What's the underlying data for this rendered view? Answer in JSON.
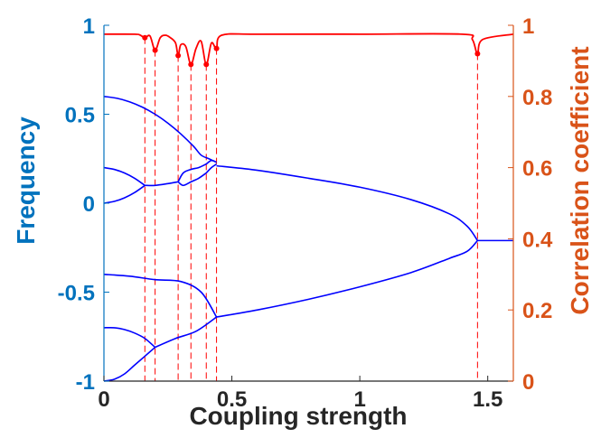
{
  "chart_data": {
    "type": "line",
    "xlabel": "Coupling strength",
    "ylabel_left": "Frequency",
    "ylabel_right": "Correlation coefficient",
    "xlim": [
      0,
      1.6
    ],
    "ylim_left": [
      -1,
      1
    ],
    "ylim_right": [
      0,
      1
    ],
    "x_ticks": [
      "0",
      "0.5",
      "1",
      "1.5"
    ],
    "y_ticks_left": [
      "-1",
      "-0.5",
      "0",
      "0.5",
      "1"
    ],
    "y_ticks_right": [
      "0",
      "0.2",
      "0.4",
      "0.6",
      "0.8",
      "1"
    ],
    "grid": false,
    "colors": {
      "left_axis": "#0072BD",
      "right_axis": "#D95319",
      "frequency_lines": "#0000FF",
      "correlation_line": "#FF0000"
    },
    "bifurcation_points": [
      0.16,
      0.2,
      0.29,
      0.34,
      0.4,
      0.44,
      1.46
    ],
    "frequency_branches": [
      {
        "x": [
          0,
          0.05,
          0.1,
          0.15,
          0.2,
          0.25,
          0.3,
          0.35,
          0.38,
          0.41,
          0.44
        ],
        "y": [
          0.6,
          0.59,
          0.57,
          0.54,
          0.5,
          0.45,
          0.39,
          0.32,
          0.27,
          0.25,
          0.23
        ]
      },
      {
        "x": [
          0,
          0.04,
          0.08,
          0.12,
          0.16
        ],
        "y": [
          0.2,
          0.19,
          0.17,
          0.14,
          0.1
        ]
      },
      {
        "x": [
          0,
          0.04,
          0.08,
          0.12,
          0.16
        ],
        "y": [
          0,
          0.01,
          0.03,
          0.06,
          0.1
        ]
      },
      {
        "x": [
          0.16,
          0.2,
          0.25,
          0.29
        ],
        "y": [
          0.1,
          0.1,
          0.11,
          0.12
        ]
      },
      {
        "x": [
          0.29,
          0.31,
          0.34,
          0.37,
          0.4
        ],
        "y": [
          0.12,
          0.17,
          0.19,
          0.2,
          0.22
        ]
      },
      {
        "x": [
          0.29,
          0.31,
          0.34,
          0.37,
          0.4
        ],
        "y": [
          0.12,
          0.1,
          0.12,
          0.14,
          0.17
        ]
      },
      {
        "x": [
          0.4,
          0.42,
          0.44
        ],
        "y": [
          0.22,
          0.24,
          0.23
        ]
      },
      {
        "x": [
          0.4,
          0.42,
          0.44
        ],
        "y": [
          0.17,
          0.2,
          0.22
        ]
      },
      {
        "x": [
          0.44,
          0.6,
          0.8,
          1.0,
          1.2,
          1.35,
          1.42,
          1.46
        ],
        "y": [
          0.21,
          0.185,
          0.14,
          0.09,
          0.02,
          -0.06,
          -0.13,
          -0.21
        ]
      },
      {
        "x": [
          0.44,
          0.6,
          0.8,
          1.0,
          1.2,
          1.35,
          1.42,
          1.46
        ],
        "y": [
          -0.64,
          -0.6,
          -0.54,
          -0.47,
          -0.39,
          -0.31,
          -0.27,
          -0.21
        ]
      },
      {
        "x": [
          1.46,
          1.6
        ],
        "y": [
          -0.21,
          -0.21
        ]
      },
      {
        "x": [
          0,
          0.1,
          0.2,
          0.3,
          0.38,
          0.44
        ],
        "y": [
          -0.4,
          -0.41,
          -0.43,
          -0.44,
          -0.5,
          -0.64
        ]
      },
      {
        "x": [
          0,
          0.04,
          0.08,
          0.12,
          0.16,
          0.2
        ],
        "y": [
          -0.7,
          -0.7,
          -0.71,
          -0.73,
          -0.76,
          -0.81
        ]
      },
      {
        "x": [
          0,
          0.04,
          0.08,
          0.12,
          0.16,
          0.2
        ],
        "y": [
          -1,
          -0.99,
          -0.96,
          -0.91,
          -0.86,
          -0.81
        ]
      },
      {
        "x": [
          0.2,
          0.28,
          0.36,
          0.44
        ],
        "y": [
          -0.81,
          -0.76,
          -0.72,
          -0.64
        ]
      }
    ],
    "correlation_series": {
      "x": [
        0,
        0.12,
        0.14,
        0.16,
        0.18,
        0.2,
        0.22,
        0.24,
        0.26,
        0.28,
        0.29,
        0.3,
        0.32,
        0.34,
        0.36,
        0.38,
        0.4,
        0.42,
        0.44,
        0.46,
        0.6,
        1.0,
        1.4,
        1.44,
        1.46,
        1.48,
        1.6
      ],
      "y": [
        0.975,
        0.975,
        0.973,
        0.965,
        0.97,
        0.93,
        0.965,
        0.972,
        0.965,
        0.95,
        0.915,
        0.945,
        0.94,
        0.89,
        0.935,
        0.955,
        0.89,
        0.95,
        0.935,
        0.972,
        0.975,
        0.975,
        0.975,
        0.96,
        0.92,
        0.96,
        0.975
      ]
    },
    "correlation_markers": {
      "x": [
        0.16,
        0.2,
        0.29,
        0.34,
        0.4,
        0.44,
        1.46
      ],
      "y": [
        0.965,
        0.93,
        0.915,
        0.89,
        0.89,
        0.935,
        0.92
      ]
    }
  }
}
